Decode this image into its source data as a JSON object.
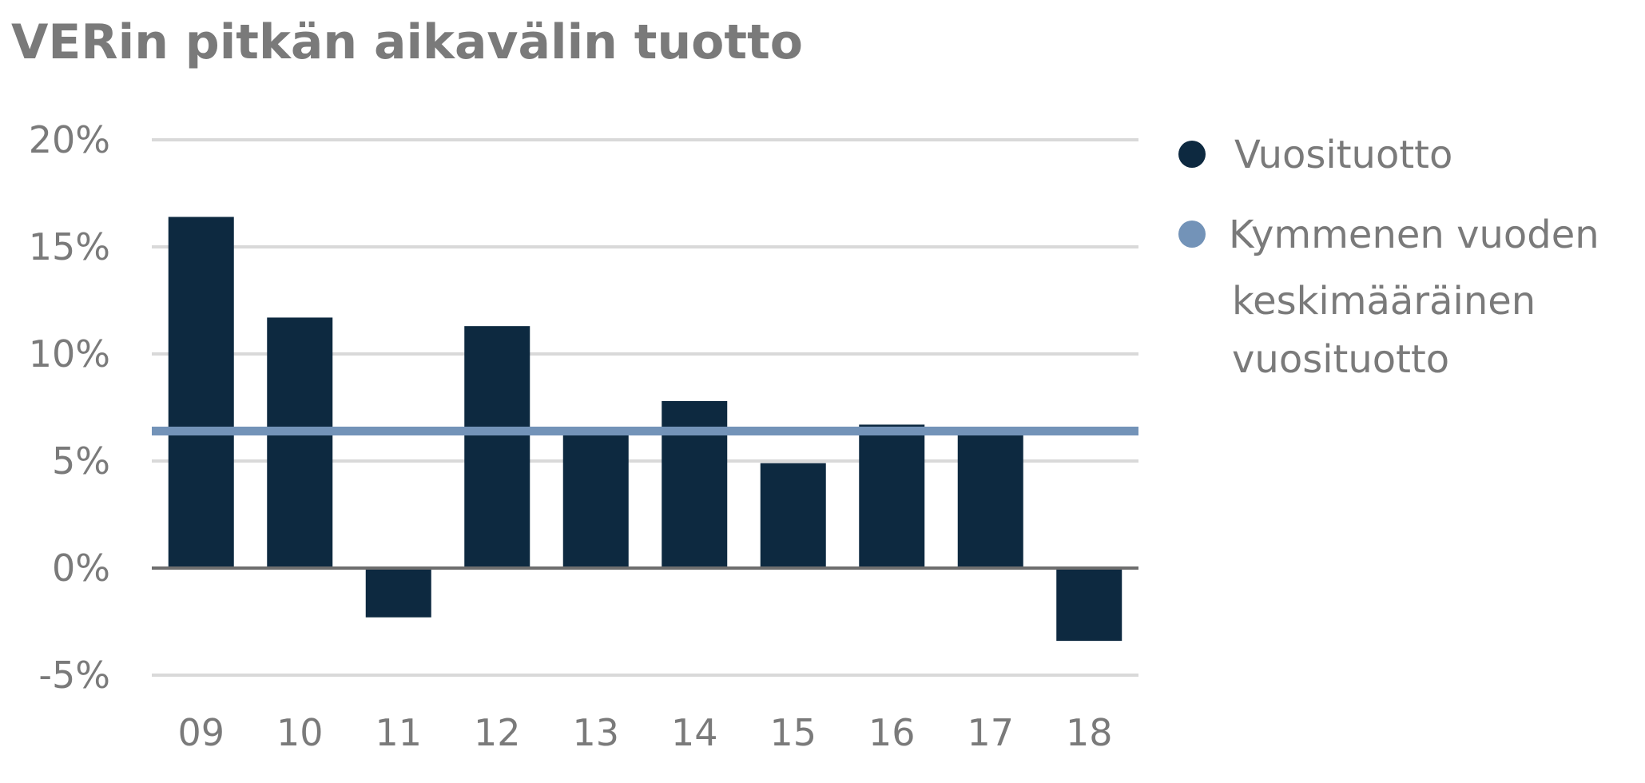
{
  "chart_data": {
    "type": "bar",
    "title": "VERin pitkän aikavälin tuotto",
    "categories": [
      "09",
      "10",
      "11",
      "12",
      "13",
      "14",
      "15",
      "16",
      "17",
      "18"
    ],
    "series": [
      {
        "name": "Vuosituotto",
        "color": "#0d2940",
        "values": [
          16.4,
          11.7,
          -2.3,
          11.3,
          6.4,
          7.8,
          4.9,
          6.7,
          6.4,
          -3.4
        ]
      }
    ],
    "reference_line": {
      "name_lines": [
        "Kymmenen vuoden",
        "keskimääräinen",
        "vuosituotto"
      ],
      "value": 6.4,
      "color": "#7393b8"
    },
    "y_ticks": [
      20,
      15,
      10,
      5,
      0,
      -5
    ],
    "y_tick_labels": [
      "20%",
      "15%",
      "10%",
      "5%",
      "0%",
      "-5%"
    ],
    "ylim": [
      -5,
      20
    ],
    "xlabel": "",
    "ylabel": "",
    "grid": true,
    "legend_position": "right"
  },
  "colors": {
    "grid": "#d9d9d9",
    "zero_line": "#6e6e6e",
    "text": "#7a7a7a"
  }
}
